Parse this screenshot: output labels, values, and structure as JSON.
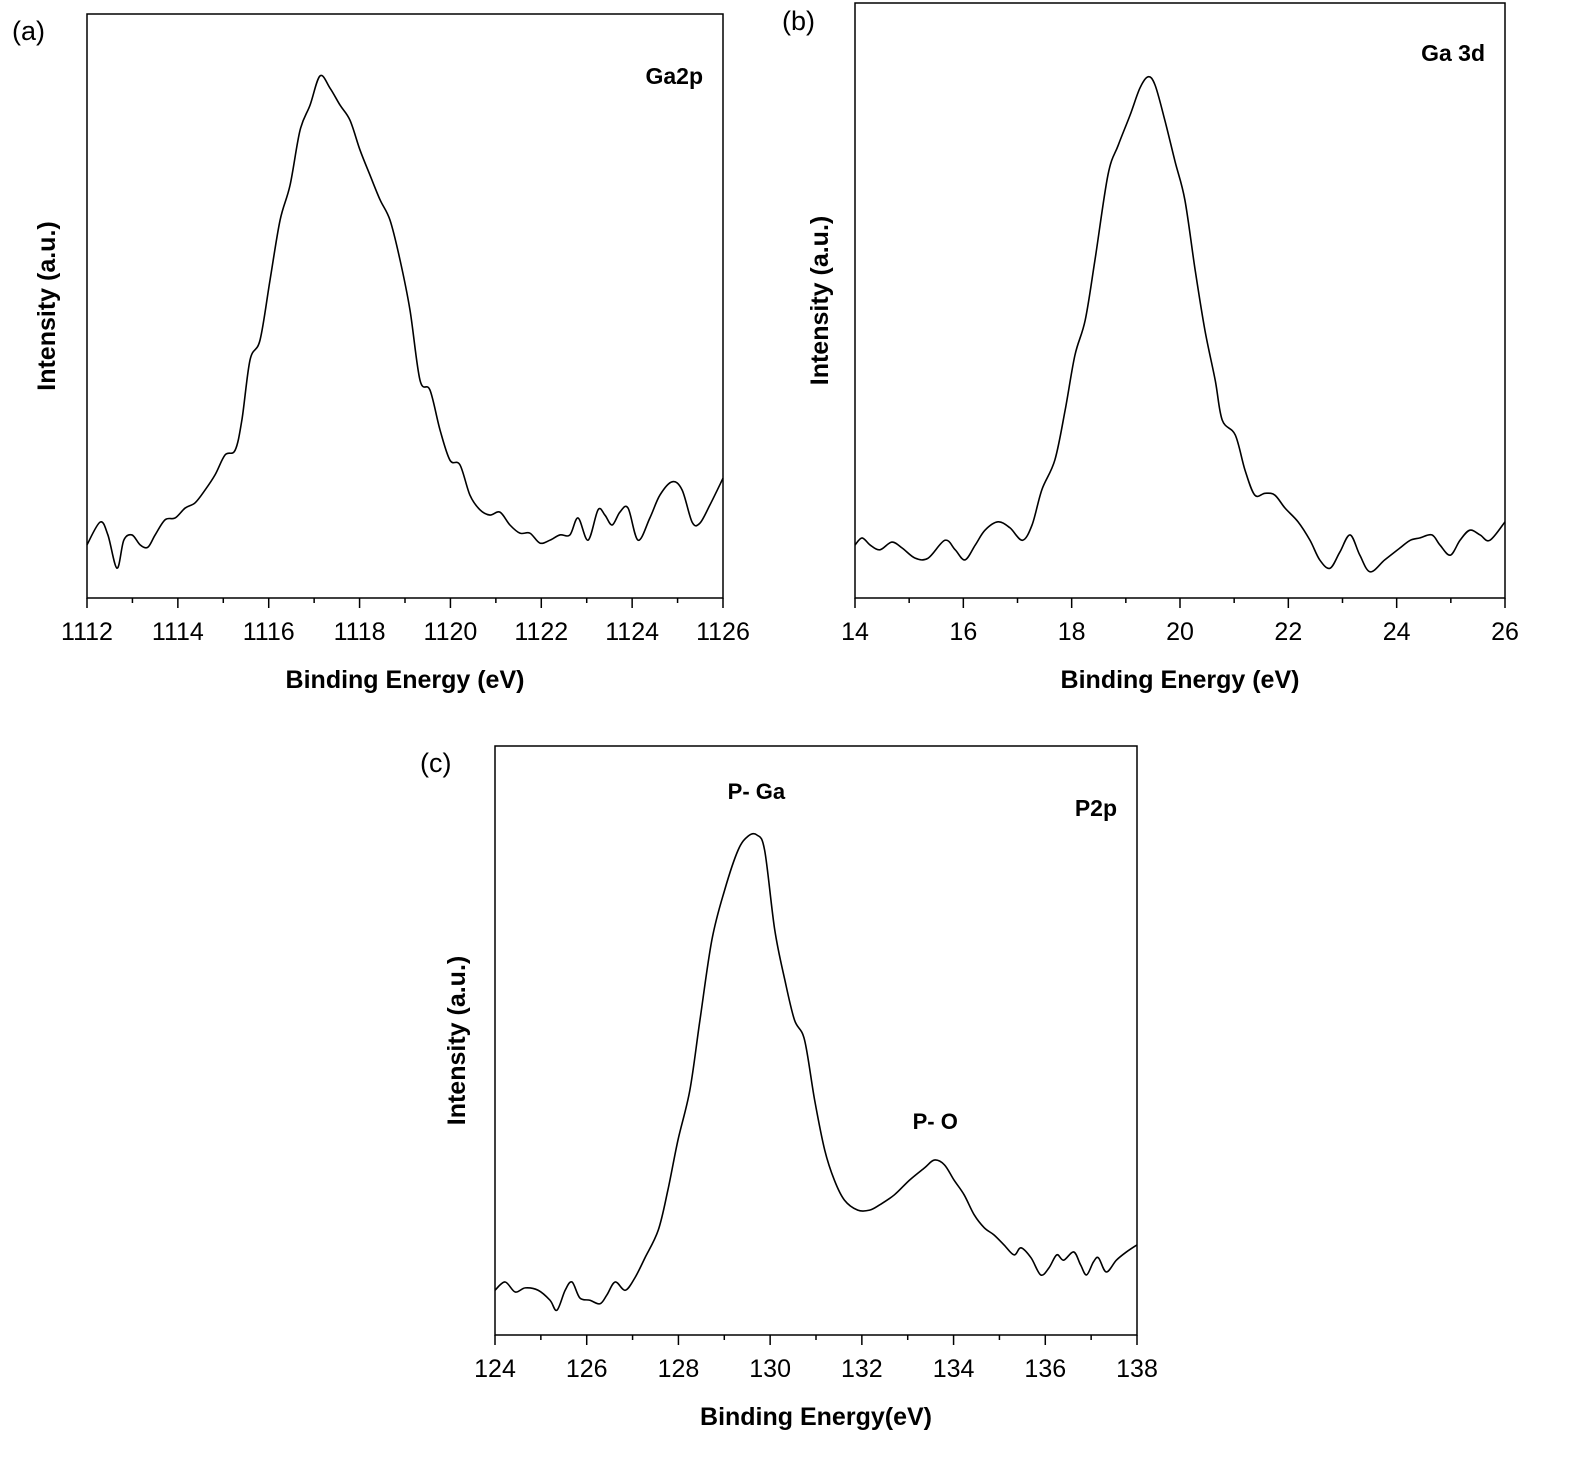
{
  "chart_data": [
    {
      "type": "line",
      "panel_label": "(a)",
      "title": "Ga2p",
      "xlabel": "Binding Energy (eV)",
      "ylabel": "Intensity (a.u.)",
      "xlim": [
        1112,
        1126
      ],
      "ylim": [
        0,
        100
      ],
      "xticks": [
        "1112",
        "1114",
        "1116",
        "1118",
        "1120",
        "1122",
        "1124",
        "1126"
      ],
      "grid": false,
      "series": [
        {
          "x": [
            1112.0,
            1112.29,
            1112.46,
            1112.66,
            1112.81,
            1112.99,
            1113.17,
            1113.34,
            1113.5,
            1113.72,
            1113.94,
            1114.16,
            1114.38,
            1114.6,
            1114.82,
            1115.04,
            1115.26,
            1115.41,
            1115.59,
            1115.81,
            1116.03,
            1116.25,
            1116.47,
            1116.69,
            1116.91,
            1117.13,
            1117.35,
            1117.57,
            1117.79,
            1118.01,
            1118.23,
            1118.45,
            1118.67,
            1118.89,
            1119.11,
            1119.33,
            1119.55,
            1119.77,
            1119.99,
            1120.21,
            1120.43,
            1120.65,
            1120.87,
            1121.09,
            1121.31,
            1121.53,
            1121.75,
            1121.97,
            1122.19,
            1122.41,
            1122.63,
            1122.81,
            1123.03,
            1123.25,
            1123.4,
            1123.56,
            1123.73,
            1123.91,
            1124.13,
            1124.39,
            1124.61,
            1124.88,
            1125.1,
            1125.32,
            1125.49,
            1125.71,
            1126.0
          ],
          "y": [
            9.1,
            13.0,
            10.8,
            5.1,
            9.9,
            10.8,
            9.1,
            8.7,
            10.8,
            13.4,
            13.7,
            15.4,
            16.3,
            18.5,
            21.1,
            24.5,
            25.3,
            30.5,
            40.8,
            44.2,
            54.5,
            64.7,
            70.7,
            80.1,
            84.4,
            89.4,
            87.3,
            84.4,
            81.8,
            76.7,
            72.4,
            68.2,
            64.7,
            57.9,
            49.3,
            37.3,
            35.6,
            28.8,
            23.6,
            22.8,
            17.6,
            15.1,
            14.2,
            14.7,
            12.5,
            11.1,
            11.1,
            9.4,
            9.9,
            10.8,
            10.8,
            13.7,
            9.9,
            15.1,
            14.2,
            12.5,
            14.7,
            15.4,
            9.9,
            13.7,
            17.6,
            19.9,
            18.5,
            13.0,
            12.8,
            15.9,
            20.5
          ]
        }
      ],
      "annotations": []
    },
    {
      "type": "line",
      "panel_label": "(b)",
      "title": "Ga 3d",
      "xlabel": "Binding Energy (eV)",
      "ylabel": "Intensity (a.u.)",
      "xlim": [
        14,
        26
      ],
      "ylim": [
        0,
        100
      ],
      "xticks": [
        "14",
        "16",
        "18",
        "20",
        "22",
        "24",
        "26"
      ],
      "grid": false,
      "series": [
        {
          "x": [
            14.0,
            14.13,
            14.28,
            14.46,
            14.68,
            14.87,
            15.11,
            15.35,
            15.66,
            15.85,
            16.03,
            16.22,
            16.4,
            16.64,
            16.86,
            17.09,
            17.27,
            17.45,
            17.69,
            17.88,
            18.06,
            18.25,
            18.43,
            18.67,
            18.86,
            19.08,
            19.26,
            19.41,
            19.54,
            19.72,
            19.91,
            20.09,
            20.28,
            20.46,
            20.65,
            20.78,
            21.02,
            21.2,
            21.38,
            21.57,
            21.75,
            21.94,
            22.18,
            22.4,
            22.58,
            22.77,
            22.95,
            23.14,
            23.32,
            23.51,
            23.78,
            24.06,
            24.25,
            24.43,
            24.65,
            24.8,
            24.99,
            25.17,
            25.35,
            25.54,
            25.72,
            26.0
          ],
          "y": [
            8.9,
            10.1,
            8.9,
            8.1,
            9.4,
            8.4,
            6.7,
            6.7,
            9.7,
            8.1,
            6.4,
            8.9,
            11.4,
            12.8,
            11.8,
            9.7,
            12.3,
            18.2,
            23.2,
            31.6,
            40.8,
            46.7,
            56.8,
            71.1,
            76.1,
            81.2,
            85.7,
            87.6,
            86.2,
            80.3,
            73.3,
            66.9,
            55.1,
            45.0,
            36.6,
            29.9,
            27.4,
            21.5,
            17.3,
            17.6,
            17.3,
            15.1,
            12.8,
            9.7,
            6.4,
            5.0,
            7.7,
            10.6,
            7.2,
            4.4,
            6.4,
            8.4,
            9.7,
            10.1,
            10.6,
            8.9,
            7.2,
            9.7,
            11.4,
            10.6,
            9.7,
            12.8
          ]
        }
      ],
      "annotations": []
    },
    {
      "type": "line",
      "panel_label": "(c)",
      "title": "P2p",
      "xlabel": "Binding Energy(eV)",
      "ylabel": "Intensity (a.u.)",
      "xlim": [
        124,
        138
      ],
      "ylim": [
        0,
        100
      ],
      "xticks": [
        "124",
        "126",
        "128",
        "130",
        "132",
        "134",
        "136",
        "138"
      ],
      "grid": false,
      "series": [
        {
          "x": [
            124.0,
            124.22,
            124.44,
            124.66,
            124.94,
            125.2,
            125.35,
            125.53,
            125.68,
            125.85,
            126.07,
            126.29,
            126.44,
            126.62,
            126.84,
            127.05,
            127.27,
            127.56,
            127.77,
            127.99,
            128.25,
            128.47,
            128.73,
            129.01,
            129.3,
            129.52,
            129.71,
            129.88,
            130.1,
            130.32,
            130.53,
            130.75,
            130.97,
            131.19,
            131.4,
            131.62,
            131.91,
            132.17,
            132.39,
            132.71,
            133.04,
            133.37,
            133.58,
            133.8,
            134.01,
            134.23,
            134.45,
            134.67,
            134.88,
            135.1,
            135.32,
            135.47,
            135.69,
            135.9,
            136.08,
            136.25,
            136.4,
            136.62,
            136.77,
            136.9,
            137.05,
            137.16,
            137.33,
            137.55,
            137.77,
            138.0
          ],
          "y": [
            7.6,
            9.0,
            7.3,
            8.0,
            7.6,
            5.9,
            4.2,
            7.6,
            9.0,
            6.3,
            5.9,
            5.3,
            6.8,
            9.0,
            7.6,
            9.7,
            13.1,
            17.8,
            24.6,
            33.1,
            41.6,
            53.5,
            67.1,
            75.6,
            82.3,
            84.7,
            84.9,
            82.3,
            68.8,
            60.3,
            53.5,
            50.1,
            39.9,
            31.4,
            26.3,
            22.9,
            21.2,
            21.2,
            22.1,
            23.8,
            26.3,
            28.4,
            29.7,
            28.9,
            26.3,
            23.8,
            20.4,
            18.2,
            17.0,
            15.3,
            13.6,
            14.8,
            13.1,
            10.2,
            11.4,
            13.6,
            12.7,
            14.1,
            11.9,
            10.2,
            12.4,
            13.1,
            10.7,
            12.7,
            14.1,
            15.3
          ]
        }
      ],
      "annotations": [
        {
          "text": "P- Ga",
          "x": 129.7,
          "y": 91
        },
        {
          "text": "P- O",
          "x": 133.6,
          "y": 35
        }
      ]
    }
  ]
}
